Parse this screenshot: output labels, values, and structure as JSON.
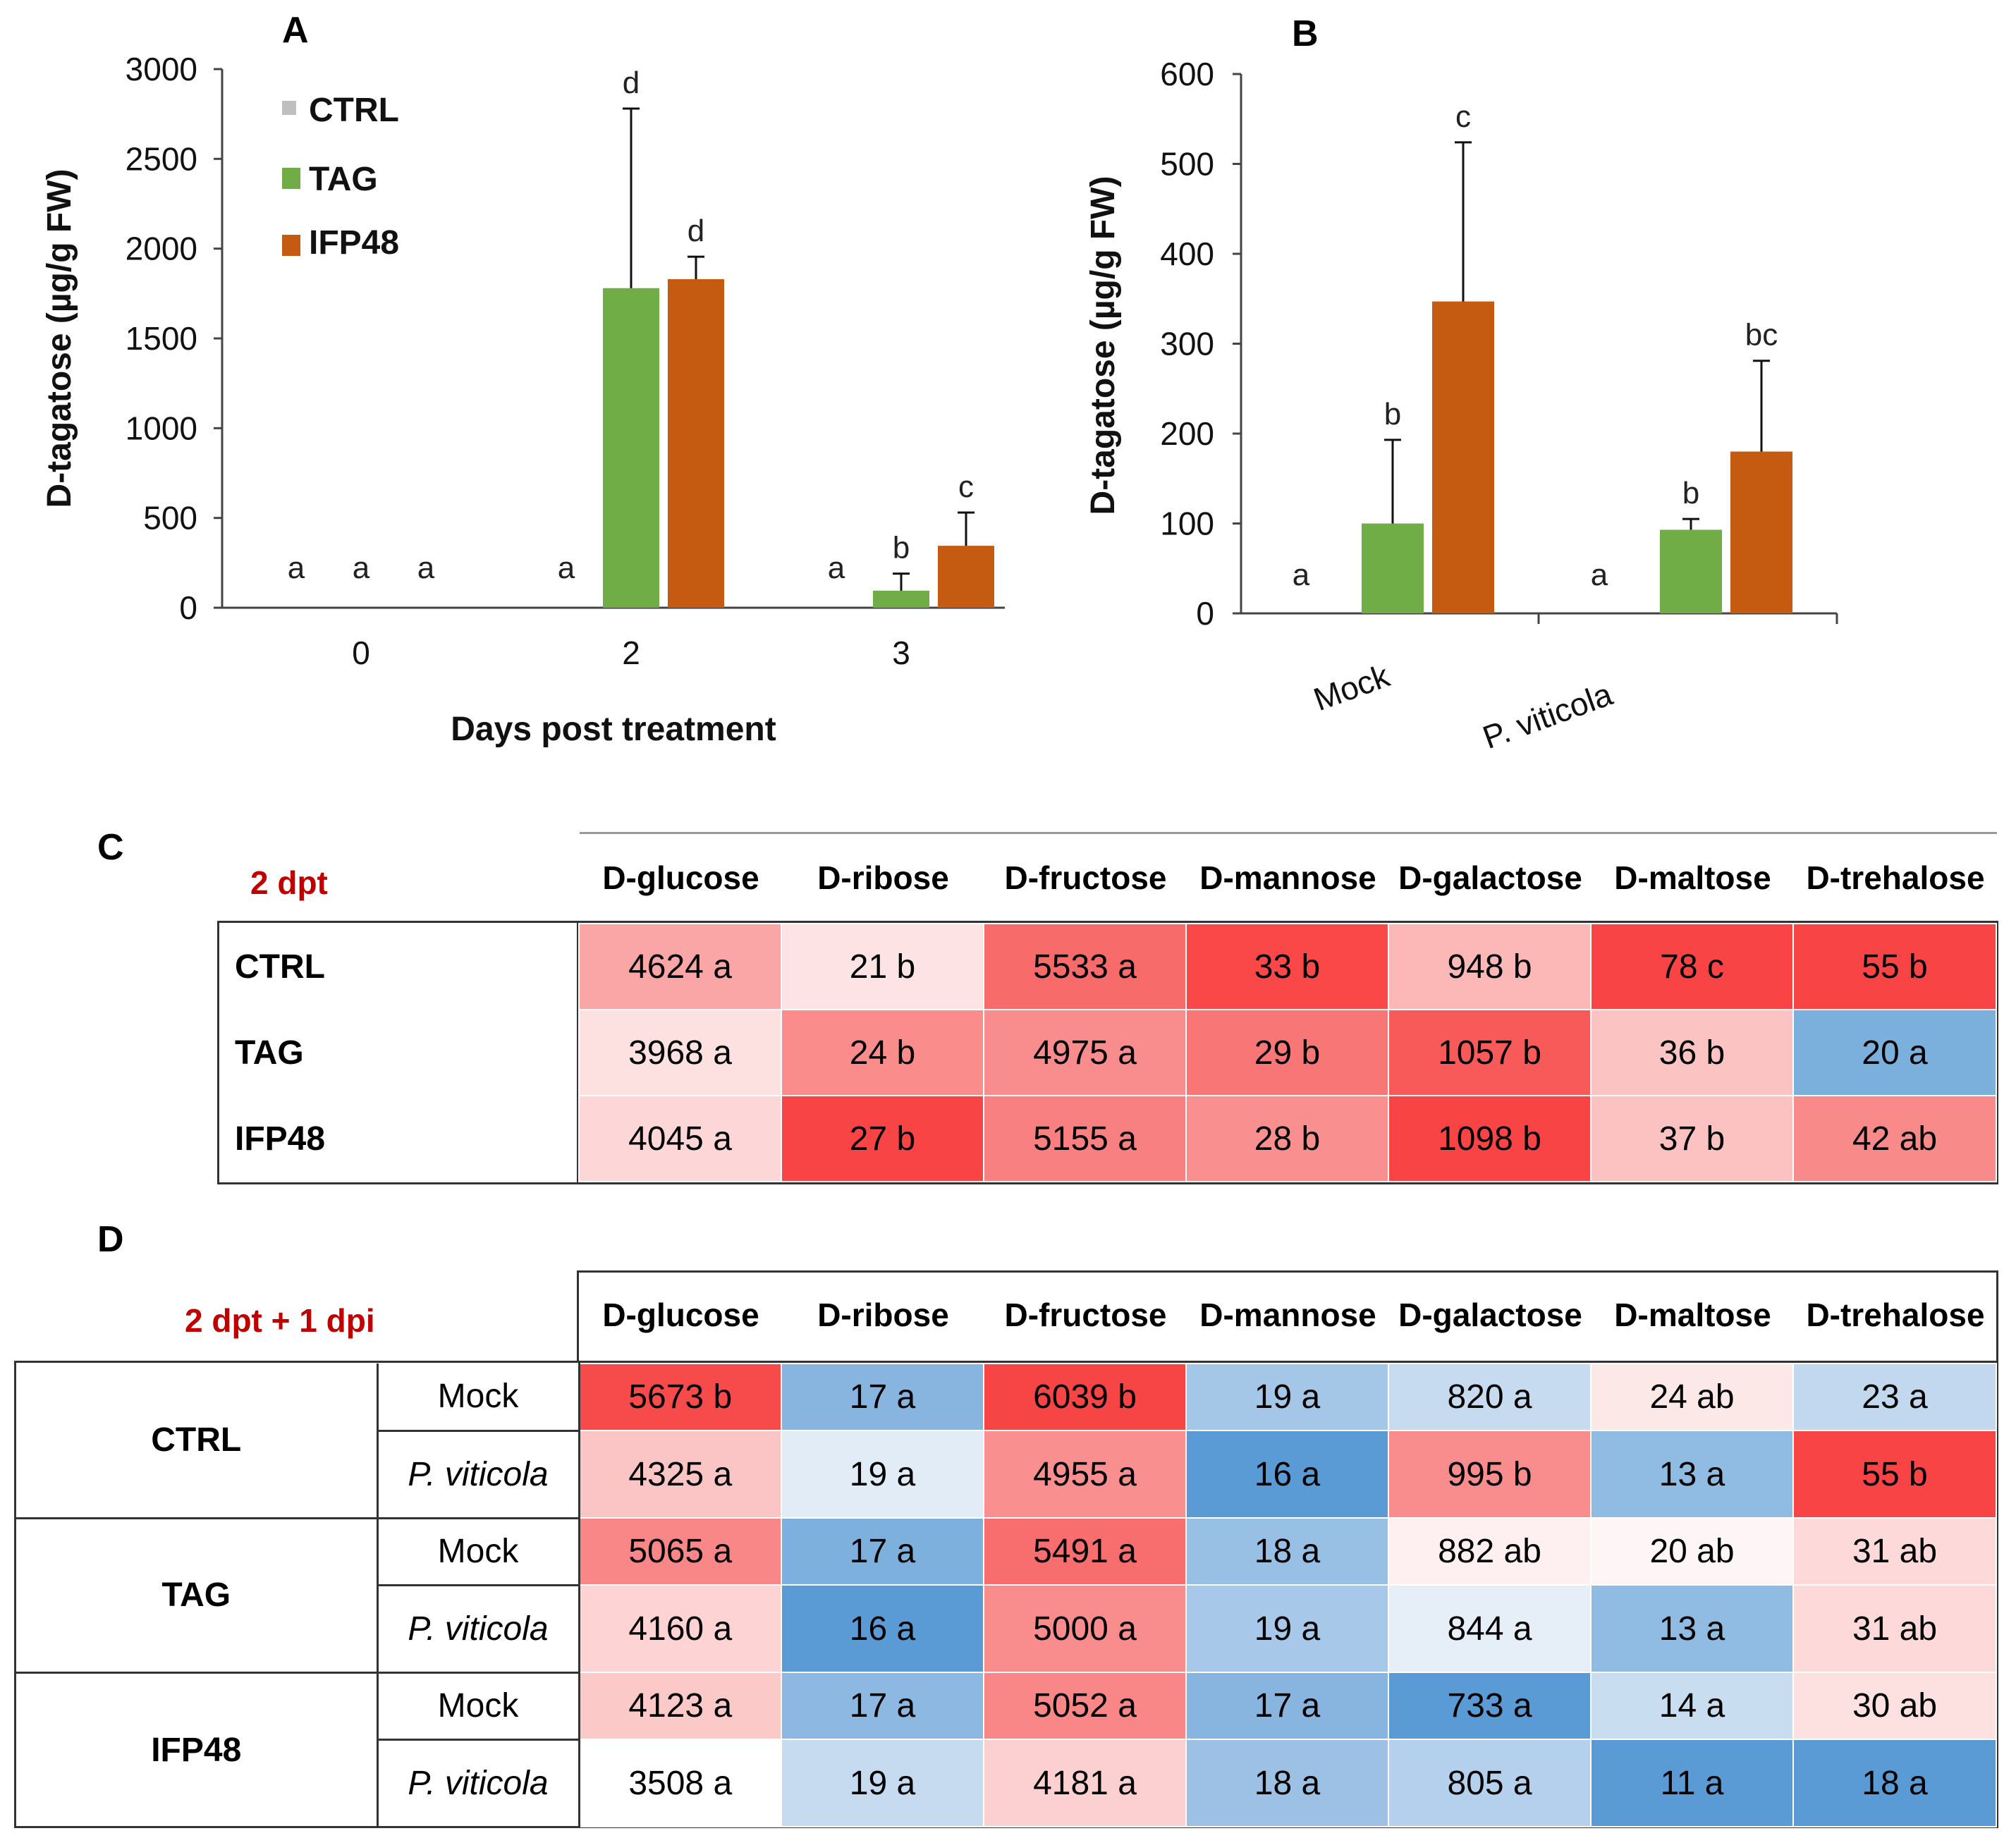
{
  "panels": {
    "a": "A",
    "b": "B",
    "c": "C",
    "d": "D"
  },
  "colors": {
    "ctrl": "#bfbfbf",
    "tag": "#70ad47",
    "ifp48": "#c55a11",
    "heat_high": "#ff4040",
    "heat_low": "#5b9bd5"
  },
  "chart_data": [
    {
      "panel": "A",
      "type": "bar",
      "title": "",
      "xlabel": "Days post treatment",
      "ylabel": "D-tagatose (µg/g FW)",
      "ylim": [
        0,
        3000
      ],
      "yticks": [
        "0",
        "500",
        "1000",
        "1500",
        "2000",
        "2500",
        "3000"
      ],
      "categories": [
        "0",
        "2",
        "3"
      ],
      "legend": [
        "CTRL",
        "TAG",
        "IFP48"
      ],
      "legend_position": "top-left",
      "series": [
        {
          "name": "CTRL",
          "values": [
            0,
            0,
            0
          ],
          "errors": [
            0,
            0,
            0
          ],
          "letters": [
            "a",
            "a",
            "a"
          ]
        },
        {
          "name": "TAG",
          "values": [
            0,
            1780,
            95
          ],
          "errors": [
            0,
            1000,
            95
          ],
          "letters": [
            "a",
            "d",
            "b"
          ]
        },
        {
          "name": "IFP48",
          "values": [
            0,
            1830,
            345
          ],
          "errors": [
            0,
            125,
            185
          ],
          "letters": [
            "a",
            "d",
            "c"
          ]
        }
      ]
    },
    {
      "panel": "B",
      "type": "bar",
      "title": "",
      "xlabel": "",
      "ylabel": "D-tagatose (µg/g FW)",
      "ylim": [
        0,
        600
      ],
      "yticks": [
        "0",
        "100",
        "200",
        "300",
        "400",
        "500",
        "600"
      ],
      "categories": [
        "Mock",
        "P. viticola"
      ],
      "series": [
        {
          "name": "CTRL",
          "values": [
            0,
            0
          ],
          "errors": [
            0,
            0
          ],
          "letters": [
            "a",
            "a"
          ]
        },
        {
          "name": "TAG",
          "values": [
            100,
            93
          ],
          "errors": [
            93,
            12
          ],
          "letters": [
            "b",
            "b"
          ]
        },
        {
          "name": "IFP48",
          "values": [
            347,
            180
          ],
          "errors": [
            177,
            101
          ],
          "letters": [
            "c",
            "bc"
          ]
        }
      ]
    }
  ],
  "table_c": {
    "condition": "2 dpt",
    "columns": [
      "D-glucose",
      "D-ribose",
      "D-fructose",
      "D-mannose",
      "D-galactose",
      "D-maltose",
      "D-trehalose"
    ],
    "rows": [
      {
        "label": "CTRL",
        "cells": [
          {
            "text": "4624 a",
            "color": "#fba6a6"
          },
          {
            "text": "21 b",
            "color": "#fde3e3"
          },
          {
            "text": "5533 a",
            "color": "#f86b6b"
          },
          {
            "text": "33 b",
            "color": "#fa4848"
          },
          {
            "text": "948 b",
            "color": "#fcb7b7"
          },
          {
            "text": "78 c",
            "color": "#f84444"
          },
          {
            "text": "55 b",
            "color": "#f84444"
          }
        ]
      },
      {
        "label": "TAG",
        "cells": [
          {
            "text": "3968 a",
            "color": "#fde0e0"
          },
          {
            "text": "24 b",
            "color": "#fa8c8c"
          },
          {
            "text": "4975 a",
            "color": "#f98d8d"
          },
          {
            "text": "29 b",
            "color": "#f97676"
          },
          {
            "text": "1057  b",
            "color": "#f85a5a"
          },
          {
            "text": "36 b",
            "color": "#fcc3c3"
          },
          {
            "text": "20 a",
            "color": "#7bb0dd"
          }
        ]
      },
      {
        "label": "IFP48",
        "cells": [
          {
            "text": "4045 a",
            "color": "#fdd7d7"
          },
          {
            "text": "27 b",
            "color": "#f84444"
          },
          {
            "text": "5155 a",
            "color": "#f98080"
          },
          {
            "text": "28 b",
            "color": "#fa8f8f"
          },
          {
            "text": "1098 b",
            "color": "#f84444"
          },
          {
            "text": "37 b",
            "color": "#fcc1c1"
          },
          {
            "text": "42 ab",
            "color": "#f98a8a"
          }
        ]
      }
    ]
  },
  "table_d": {
    "condition": "2 dpt + 1 dpi",
    "columns": [
      "D-glucose",
      "D-ribose",
      "D-fructose",
      "D-mannose",
      "D-galactose",
      "D-maltose",
      "D-trehalose"
    ],
    "groups": [
      {
        "label": "CTRL",
        "rows": [
          {
            "sub": "Mock",
            "italic": false,
            "cells": [
              {
                "text": "5673 b",
                "color": "#f74a4a"
              },
              {
                "text": "17 a",
                "color": "#87b5e0"
              },
              {
                "text": "6039 b",
                "color": "#f74444"
              },
              {
                "text": "19 a",
                "color": "#a4c6e7"
              },
              {
                "text": "820 a",
                "color": "#c6dbf0"
              },
              {
                "text": "24 ab",
                "color": "#fde8e8"
              },
              {
                "text": "23 a",
                "color": "#c1d8ef"
              }
            ]
          },
          {
            "sub": "P. viticola",
            "italic": true,
            "cells": [
              {
                "text": "4325 a",
                "color": "#fcc5c5"
              },
              {
                "text": "19 a",
                "color": "#e2ecf7"
              },
              {
                "text": "4955 a",
                "color": "#f98f8f"
              },
              {
                "text": "16 a",
                "color": "#5b9bd5"
              },
              {
                "text": "995 b",
                "color": "#f98d8d"
              },
              {
                "text": "13 a",
                "color": "#90bbe2"
              },
              {
                "text": "55 b",
                "color": "#f84444"
              }
            ]
          }
        ]
      },
      {
        "label": "TAG",
        "rows": [
          {
            "sub": "Mock",
            "italic": false,
            "cells": [
              {
                "text": "5065 a",
                "color": "#f98787"
              },
              {
                "text": "17 a",
                "color": "#7eb0dd"
              },
              {
                "text": "5491 a",
                "color": "#f86e6e"
              },
              {
                "text": "18 a",
                "color": "#98bfe4"
              },
              {
                "text": "882 ab",
                "color": "#fef0f0"
              },
              {
                "text": "20 ab",
                "color": "#fef6f6"
              },
              {
                "text": "31 ab",
                "color": "#fdd9d9"
              }
            ]
          },
          {
            "sub": "P. viticola",
            "italic": true,
            "cells": [
              {
                "text": "4160 a",
                "color": "#fdd3d3"
              },
              {
                "text": "16 a",
                "color": "#5b9bd5"
              },
              {
                "text": "5000 a",
                "color": "#f98c8c"
              },
              {
                "text": "19 a",
                "color": "#a7c8e8"
              },
              {
                "text": "844 a",
                "color": "#e6eff8"
              },
              {
                "text": "13 a",
                "color": "#90bbe2"
              },
              {
                "text": "31 ab",
                "color": "#fdd9d9"
              }
            ]
          }
        ]
      },
      {
        "label": "IFP48",
        "rows": [
          {
            "sub": "Mock",
            "italic": false,
            "cells": [
              {
                "text": "4123 a",
                "color": "#fcc9c9"
              },
              {
                "text": "17 a",
                "color": "#8cb8e1"
              },
              {
                "text": "5052 a",
                "color": "#f98787"
              },
              {
                "text": "17 a",
                "color": "#87b5e0"
              },
              {
                "text": "733 a",
                "color": "#5b9bd5"
              },
              {
                "text": "14 a",
                "color": "#c9ddf1"
              },
              {
                "text": "30 ab",
                "color": "#fde0e0"
              }
            ]
          },
          {
            "sub": "P. viticola",
            "italic": true,
            "cells": [
              {
                "text": "3508 a",
                "color": "#ffffff"
              },
              {
                "text": "19 a",
                "color": "#c6dbf0"
              },
              {
                "text": "4181 a",
                "color": "#fcd0d0"
              },
              {
                "text": "18 a",
                "color": "#9cc1e5"
              },
              {
                "text": "805 a",
                "color": "#b5d0ec"
              },
              {
                "text": "11 a",
                "color": "#5b9bd5"
              },
              {
                "text": "18 a",
                "color": "#5b9bd5"
              }
            ]
          }
        ]
      }
    ]
  }
}
